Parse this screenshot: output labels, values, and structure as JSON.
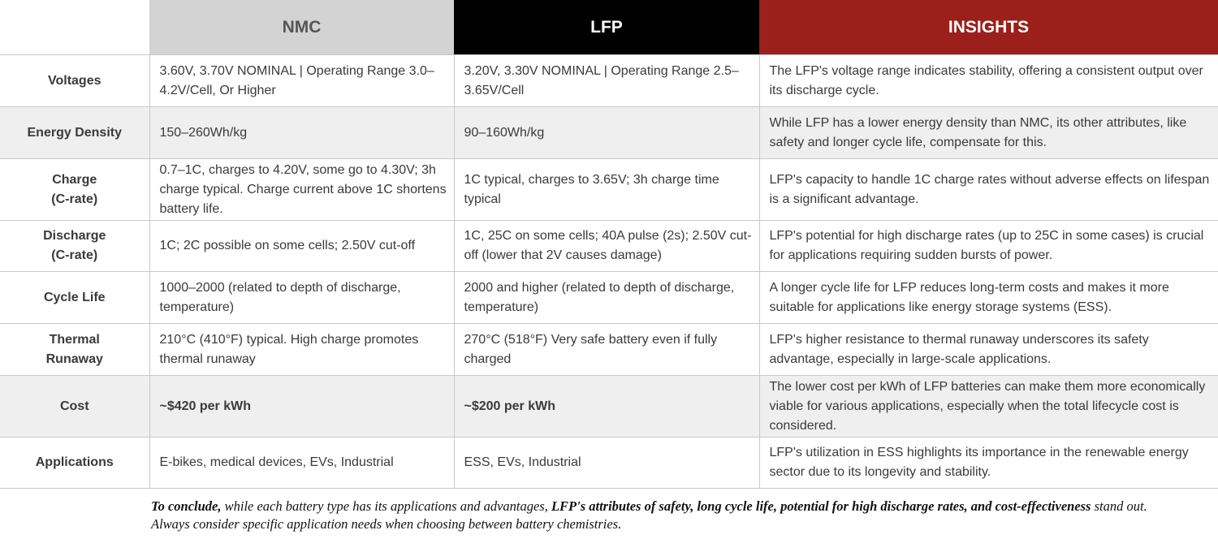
{
  "headers": {
    "nmc": "NMC",
    "lfp": "LFP",
    "insights": "INSIGHTS"
  },
  "rows": [
    {
      "label1": "Voltages",
      "label2": "",
      "nmc": "3.60V, 3.70V NOMINAL | Operating Range 3.0–4.2V/Cell, Or Higher",
      "lfp": "3.20V, 3.30V NOMINAL | Operating Range 2.5–3.65V/Cell",
      "insight": "The LFP's voltage range indicates stability, offering a consistent output over its discharge cycle."
    },
    {
      "label1": "Energy Density",
      "label2": "",
      "nmc": "150–260Wh/kg",
      "lfp": "90–160Wh/kg",
      "insight": "While LFP has a lower energy density than NMC, its other attributes, like safety and longer cycle life, compensate for this."
    },
    {
      "label1": "Charge",
      "label2": "(C-rate)",
      "nmc": "0.7–1C, charges to 4.20V, some go to 4.30V; 3h charge typical. Charge current above 1C shortens battery life.",
      "lfp": "1C typical, charges to 3.65V; 3h charge time typical",
      "insight": "LFP's capacity to handle 1C charge rates without adverse effects on lifespan is a significant advantage."
    },
    {
      "label1": "Discharge",
      "label2": "(C-rate)",
      "nmc": "1C; 2C possible on some cells; 2.50V cut-off",
      "lfp": "1C, 25C on some cells; 40A pulse (2s); 2.50V cut-off (lower that 2V causes damage)",
      "insight": "LFP's potential for high discharge rates (up to 25C in some cases) is crucial for applications requiring sudden bursts of power."
    },
    {
      "label1": "Cycle Life",
      "label2": "",
      "nmc": "1000–2000 (related to depth of discharge, temperature)",
      "lfp": "2000 and higher (related to depth of discharge, temperature)",
      "insight": "A longer cycle life for LFP reduces long-term costs and makes it more suitable for applications like energy storage systems (ESS)."
    },
    {
      "label1": "Thermal",
      "label2": "Runaway",
      "nmc": "210°C (410°F) typical. High charge promotes thermal runaway",
      "lfp": "270°C (518°F) Very safe battery even if fully charged",
      "insight": "LFP's higher resistance to thermal runaway underscores its safety advantage, especially in large-scale applications."
    },
    {
      "label1": "Cost",
      "label2": "",
      "nmc": "~$420 per kWh",
      "lfp": "~$200 per kWh",
      "insight": "The lower cost per kWh of LFP batteries can make them more economically viable for various applications, especially when the total lifecycle cost is considered."
    },
    {
      "label1": "Applications",
      "label2": "",
      "nmc": "E-bikes, medical devices, EVs, Industrial",
      "lfp": "ESS, EVs, Industrial",
      "insight": "LFP's utilization in ESS highlights its importance in the renewable energy sector due to its longevity and stability."
    }
  ],
  "conclusion": {
    "lead": "To conclude,",
    "part1": " while each battery type has its applications and advantages, ",
    "bold": "LFP's attributes of safety, long cycle life, potential for high discharge rates, and cost-effectiveness",
    "part2": " stand out.",
    "line2": "Always consider specific application needs when choosing between battery chemistries."
  }
}
